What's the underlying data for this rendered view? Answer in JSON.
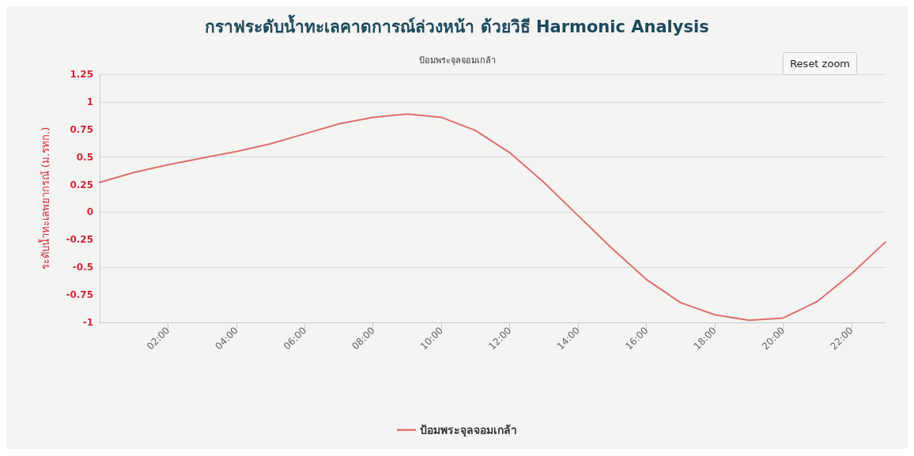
{
  "chart_data": {
    "type": "line",
    "title": "กราฟระดับน้ำทะเลคาดการณ์ล่วงหน้า ด้วยวิธี Harmonic Analysis",
    "subtitle": "ป้อมพระจุลจอมเกล้า",
    "ylabel": "ระดับน้ำทะเลพยากรณ์ (ม.รทก.)",
    "annotations": [
      "Reset zoom"
    ],
    "x": [
      0,
      1,
      2,
      3,
      4,
      5,
      6,
      7,
      8,
      9,
      10,
      11,
      12,
      13,
      14,
      15,
      16,
      17,
      18,
      19,
      20,
      21,
      22,
      23
    ],
    "series": [
      {
        "name": "ป้อมพระจุลจอมเกล้า",
        "color": "#e07070",
        "values": [
          0.27,
          0.36,
          0.43,
          0.49,
          0.55,
          0.62,
          0.71,
          0.8,
          0.86,
          0.89,
          0.86,
          0.74,
          0.54,
          0.27,
          -0.03,
          -0.33,
          -0.61,
          -0.82,
          -0.93,
          -0.98,
          -0.96,
          -0.81,
          -0.56,
          -0.27
        ]
      }
    ],
    "xlim": [
      0,
      23
    ],
    "xticks": [
      {
        "value": 2,
        "label": "02:00"
      },
      {
        "value": 4,
        "label": "04:00"
      },
      {
        "value": 6,
        "label": "06:00"
      },
      {
        "value": 8,
        "label": "08:00"
      },
      {
        "value": 10,
        "label": "10:00"
      },
      {
        "value": 12,
        "label": "12:00"
      },
      {
        "value": 14,
        "label": "14:00"
      },
      {
        "value": 16,
        "label": "16:00"
      },
      {
        "value": 18,
        "label": "18:00"
      },
      {
        "value": 20,
        "label": "20:00"
      },
      {
        "value": 22,
        "label": "22:00"
      }
    ],
    "ylim": [
      -1,
      1.25
    ],
    "yticks": [
      -1,
      -0.75,
      -0.5,
      -0.25,
      0,
      0.25,
      0.5,
      0.75,
      1,
      1.25
    ],
    "grid": "y",
    "legend": "bottom",
    "marker": "none",
    "line_style": "solid"
  }
}
